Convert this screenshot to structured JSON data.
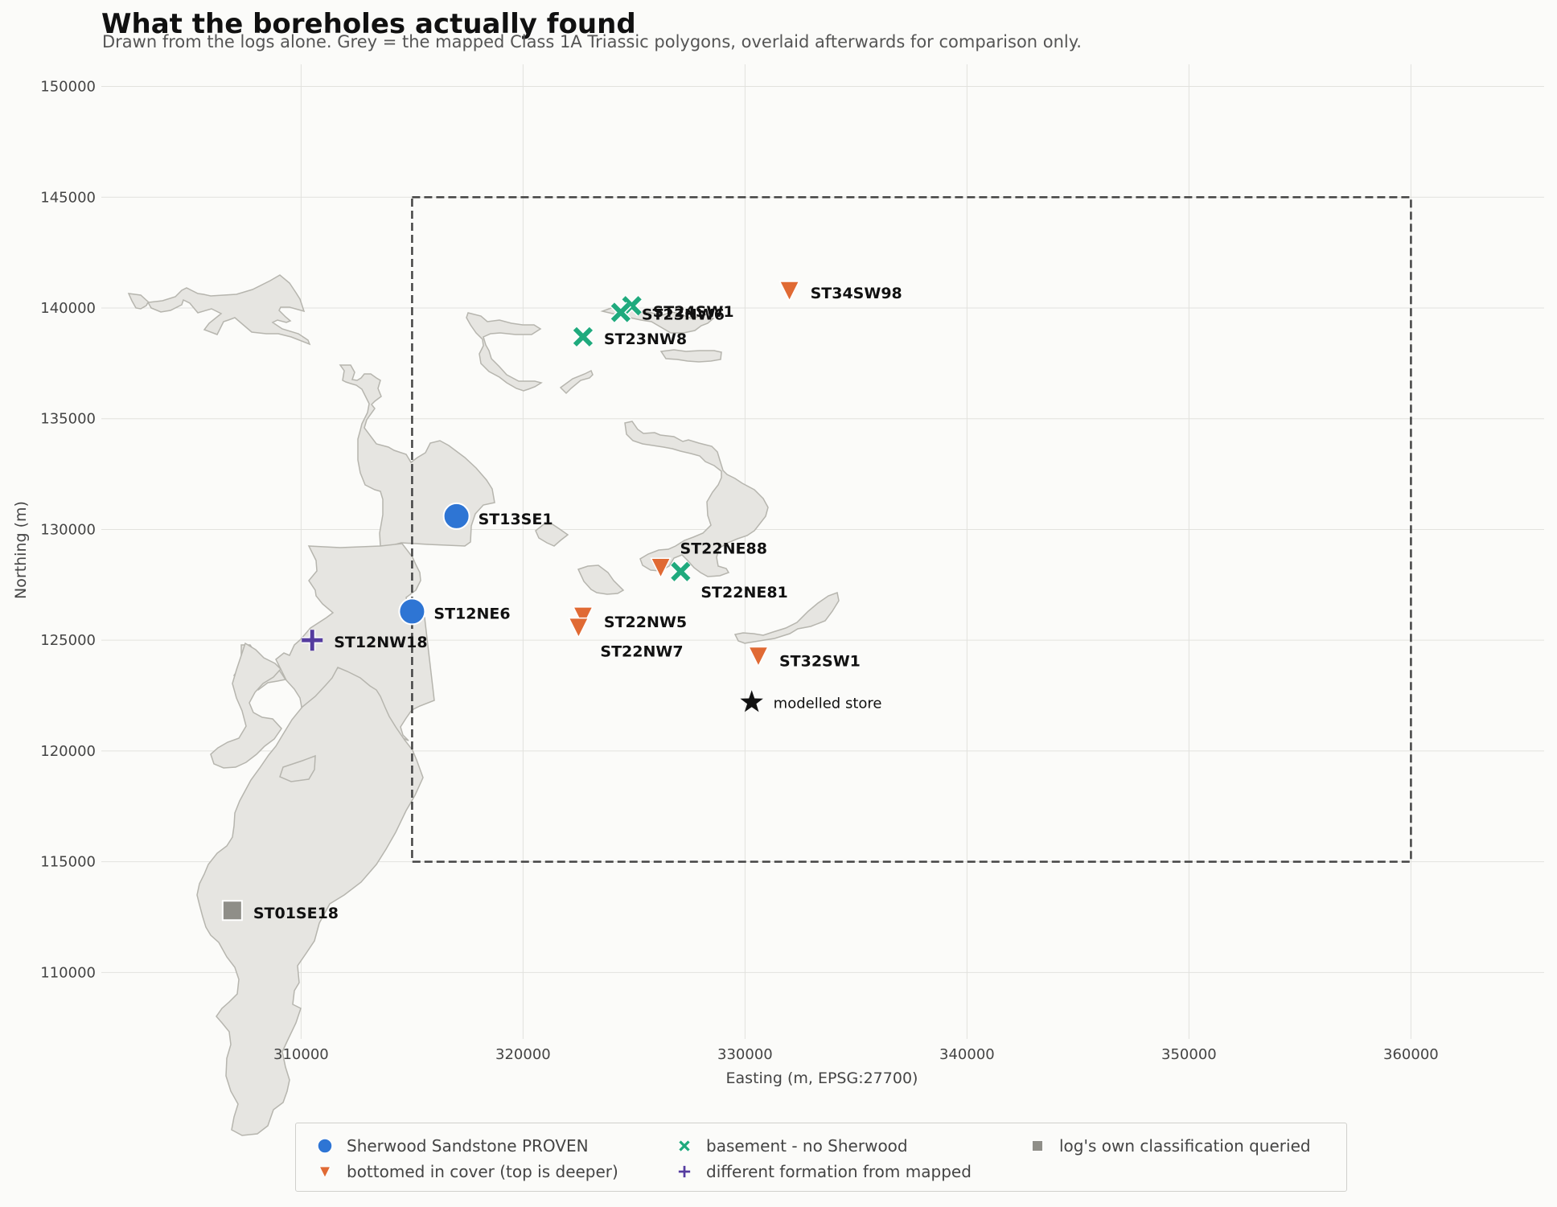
{
  "title": "What the boreholes actually found",
  "subtitle": "Drawn from the logs alone. Grey = the mapped Class 1A Triassic polygons, overlaid afterwards for comparison only.",
  "colors": {
    "proven": "#2e75d4",
    "cover": "#e06a34",
    "basement": "#1faa7d",
    "different": "#553c9f",
    "queried": "#8f8e88",
    "polygon_fill": "#e6e5e1",
    "polygon_stroke": "#b6b5ae",
    "store": "#111111"
  },
  "chart_data": {
    "type": "scatter",
    "xlabel": "Easting (m, EPSG:27700)",
    "ylabel": "Northing (m)",
    "xlim": [
      301000,
      366000
    ],
    "ylim": [
      107000,
      151000
    ],
    "x_ticks": [
      310000,
      320000,
      330000,
      340000,
      350000,
      360000
    ],
    "y_ticks": [
      110000,
      115000,
      120000,
      125000,
      130000,
      135000,
      140000,
      145000,
      150000
    ],
    "grid": true,
    "legend_position": "bottom",
    "study_area": {
      "x0": 315000,
      "x1": 360000,
      "y0": 115000,
      "y1": 145000
    },
    "store": {
      "x": 330300,
      "y": 122200,
      "label": "modelled store"
    },
    "series": [
      {
        "key": "proven",
        "name": "Sherwood Sandstone PROVEN",
        "marker": "circle",
        "points": [
          {
            "x": 317000,
            "y": 130600,
            "label": "ST13SE1"
          },
          {
            "x": 315000,
            "y": 126300,
            "label": "ST12NE6"
          }
        ]
      },
      {
        "key": "cover",
        "name": "bottomed in cover (top is deeper)",
        "marker": "triangle-down",
        "points": [
          {
            "x": 332000,
            "y": 140800,
            "label": "ST34SW98"
          },
          {
            "x": 326200,
            "y": 128300,
            "label": "ST22NE88"
          },
          {
            "x": 322700,
            "y": 126100,
            "label": "ST22NW5"
          },
          {
            "x": 322500,
            "y": 125600,
            "label": "ST22NW7"
          },
          {
            "x": 330600,
            "y": 124300,
            "label": "ST32SW1"
          }
        ]
      },
      {
        "key": "basement",
        "name": "basement - no Sherwood",
        "marker": "x",
        "points": [
          {
            "x": 324900,
            "y": 140100,
            "label": "ST24SW1"
          },
          {
            "x": 324400,
            "y": 139800,
            "label": "ST23NW6"
          },
          {
            "x": 322700,
            "y": 138700,
            "label": "ST23NW8"
          },
          {
            "x": 327100,
            "y": 128100,
            "label": "ST22NE81"
          }
        ]
      },
      {
        "key": "different",
        "name": "different formation from mapped",
        "marker": "plus",
        "points": [
          {
            "x": 310500,
            "y": 125000,
            "label": "ST12NW18"
          }
        ]
      },
      {
        "key": "queried",
        "name": "log's own classification queried",
        "marker": "square",
        "points": [
          {
            "x": 306900,
            "y": 112800,
            "label": "ST01SE18"
          }
        ]
      }
    ]
  }
}
